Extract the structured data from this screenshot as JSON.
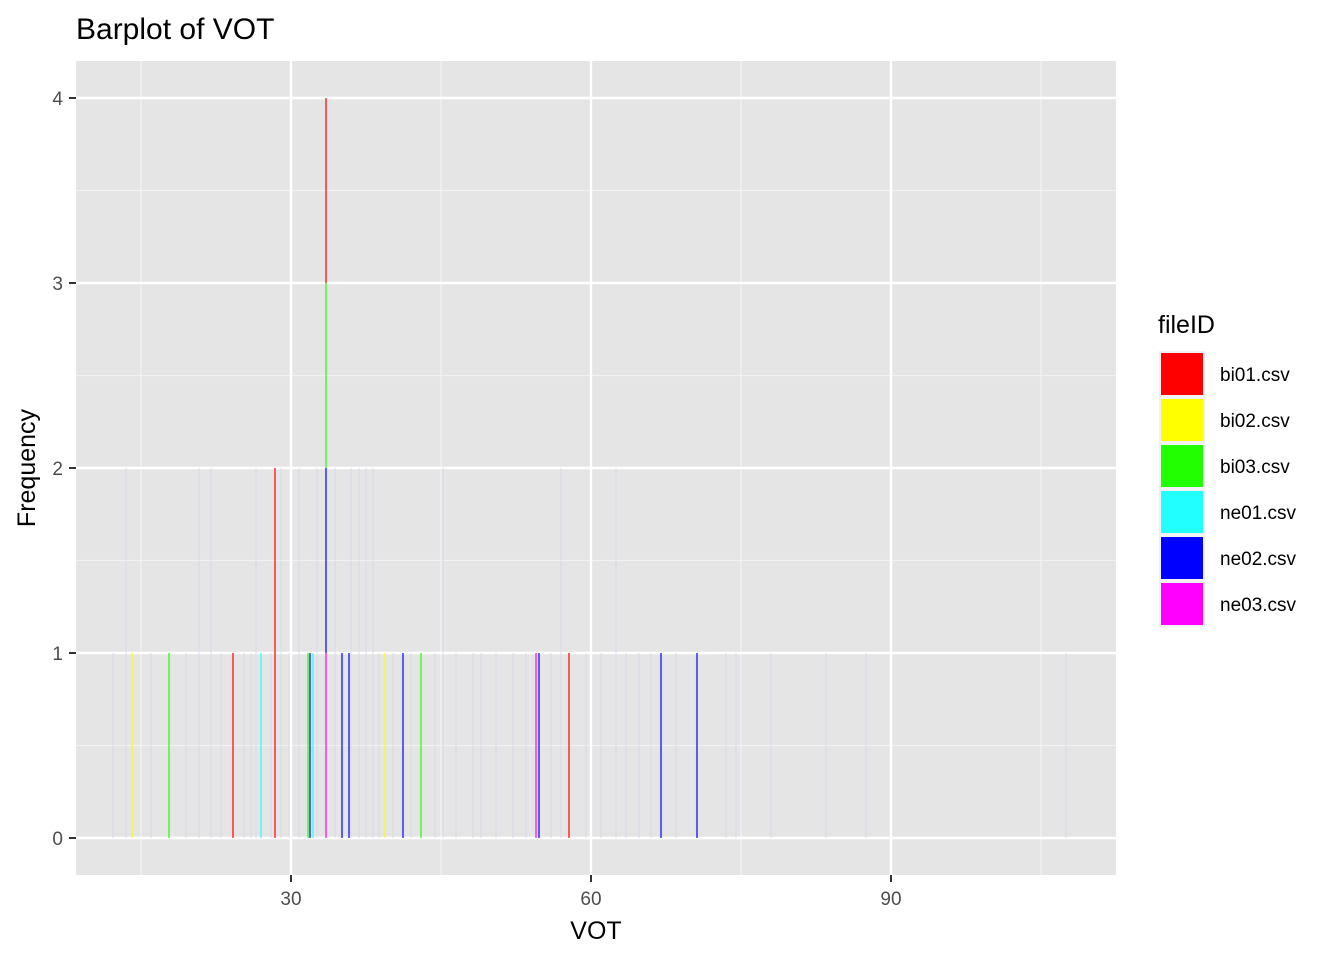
{
  "chart_data": {
    "type": "bar",
    "title": "Barplot of VOT",
    "xlabel": "VOT",
    "ylabel": "Frequency",
    "xlim": [
      8.5,
      112.5
    ],
    "ylim": [
      -0.2,
      4.2
    ],
    "x_ticks": [
      30,
      60,
      90
    ],
    "y_ticks": [
      0,
      1,
      2,
      3,
      4
    ],
    "grid": true,
    "bar_width": 0.12,
    "legend": {
      "title": "fileID",
      "position": "right",
      "entries": [
        {
          "label": "bi01.csv",
          "color": "#FF0000"
        },
        {
          "label": "bi02.csv",
          "color": "#FFFF00"
        },
        {
          "label": "bi03.csv",
          "color": "#22FF00"
        },
        {
          "label": "ne01.csv",
          "color": "#22FFFF"
        },
        {
          "label": "ne02.csv",
          "color": "#0000FF"
        },
        {
          "label": "ne03.csv",
          "color": "#FF00FF"
        }
      ]
    },
    "series": [
      {
        "name": "bi01.csv",
        "color": "#FF0000",
        "points": [
          {
            "x": 24.2,
            "y": 1
          },
          {
            "x": 28.4,
            "y": 2
          },
          {
            "x": 33.5,
            "y": 1
          },
          {
            "x": 57.8,
            "y": 1
          }
        ]
      },
      {
        "name": "bi02.csv",
        "color": "#FFFF00",
        "points": [
          {
            "x": 14.1,
            "y": 1
          },
          {
            "x": 39.4,
            "y": 1
          }
        ]
      },
      {
        "name": "bi03.csv",
        "color": "#22FF00",
        "points": [
          {
            "x": 17.8,
            "y": 1
          },
          {
            "x": 31.7,
            "y": 1
          },
          {
            "x": 33.5,
            "y": 1
          },
          {
            "x": 43.0,
            "y": 1
          }
        ]
      },
      {
        "name": "ne01.csv",
        "color": "#22FFFF",
        "points": [
          {
            "x": 27.0,
            "y": 1
          },
          {
            "x": 32.2,
            "y": 1
          }
        ]
      },
      {
        "name": "ne02.csv",
        "color": "#0000FF",
        "points": [
          {
            "x": 31.9,
            "y": 1
          },
          {
            "x": 33.5,
            "y": 1
          },
          {
            "x": 35.1,
            "y": 1
          },
          {
            "x": 35.8,
            "y": 1
          },
          {
            "x": 41.2,
            "y": 1
          },
          {
            "x": 54.8,
            "y": 1
          },
          {
            "x": 67.0,
            "y": 1
          },
          {
            "x": 70.6,
            "y": 1
          }
        ]
      },
      {
        "name": "ne03.csv",
        "color": "#FF00FF",
        "points": [
          {
            "x": 33.5,
            "y": 1
          },
          {
            "x": 54.5,
            "y": 1
          }
        ]
      }
    ],
    "faint_bars": [
      {
        "x": 12.2,
        "y": 1
      },
      {
        "x": 13.5,
        "y": 2
      },
      {
        "x": 16.0,
        "y": 1
      },
      {
        "x": 19.5,
        "y": 1
      },
      {
        "x": 20.8,
        "y": 2
      },
      {
        "x": 22.0,
        "y": 2
      },
      {
        "x": 23.0,
        "y": 1
      },
      {
        "x": 25.3,
        "y": 1
      },
      {
        "x": 26.0,
        "y": 1
      },
      {
        "x": 26.5,
        "y": 2
      },
      {
        "x": 28.0,
        "y": 1
      },
      {
        "x": 29.0,
        "y": 2
      },
      {
        "x": 29.8,
        "y": 1
      },
      {
        "x": 30.8,
        "y": 2
      },
      {
        "x": 32.6,
        "y": 2
      },
      {
        "x": 34.4,
        "y": 2
      },
      {
        "x": 36.0,
        "y": 2
      },
      {
        "x": 36.8,
        "y": 2
      },
      {
        "x": 37.5,
        "y": 2
      },
      {
        "x": 38.2,
        "y": 2
      },
      {
        "x": 38.8,
        "y": 1
      },
      {
        "x": 40.2,
        "y": 1
      },
      {
        "x": 42.0,
        "y": 1
      },
      {
        "x": 44.4,
        "y": 1
      },
      {
        "x": 45.2,
        "y": 2
      },
      {
        "x": 46.5,
        "y": 1
      },
      {
        "x": 48.2,
        "y": 1
      },
      {
        "x": 49.0,
        "y": 1
      },
      {
        "x": 50.5,
        "y": 1
      },
      {
        "x": 52.2,
        "y": 1
      },
      {
        "x": 53.5,
        "y": 1
      },
      {
        "x": 56.0,
        "y": 1
      },
      {
        "x": 57.0,
        "y": 2
      },
      {
        "x": 59.5,
        "y": 1
      },
      {
        "x": 61.0,
        "y": 1
      },
      {
        "x": 62.5,
        "y": 2
      },
      {
        "x": 63.5,
        "y": 1
      },
      {
        "x": 64.8,
        "y": 1
      },
      {
        "x": 66.0,
        "y": 1
      },
      {
        "x": 68.5,
        "y": 1
      },
      {
        "x": 73.5,
        "y": 1
      },
      {
        "x": 74.5,
        "y": 1
      },
      {
        "x": 78.0,
        "y": 1
      },
      {
        "x": 83.5,
        "y": 1
      },
      {
        "x": 87.5,
        "y": 1
      },
      {
        "x": 107.5,
        "y": 1
      }
    ]
  }
}
